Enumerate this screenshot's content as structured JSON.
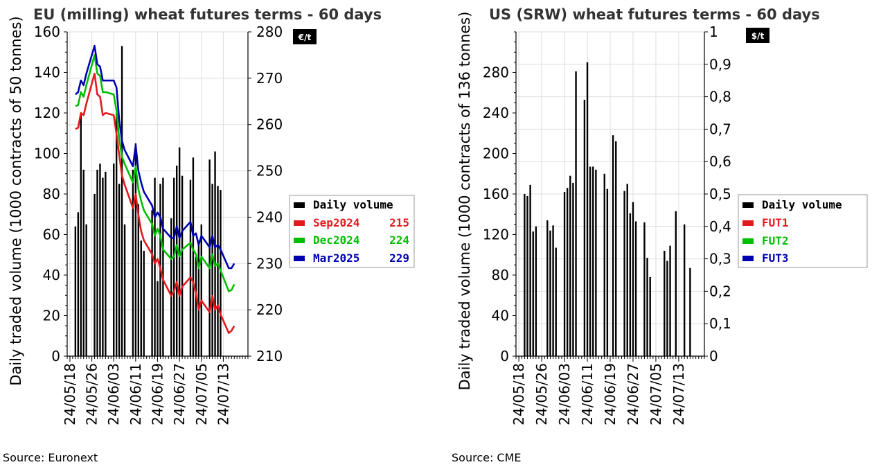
{
  "chart_data": [
    {
      "type": "bar+line",
      "title": "EU (milling) wheat futures terms - 60 days",
      "ylabel": "Daily traded volume (1000 contracts of 50 tonnes)",
      "ylim": [
        0,
        160
      ],
      "yticks": [
        "0",
        "20",
        "40",
        "60",
        "80",
        "100",
        "120",
        "140",
        "160"
      ],
      "y2unit": "€/t",
      "y2lim": [
        210,
        280
      ],
      "y2ticks": [
        "210",
        "220",
        "230",
        "240",
        "250",
        "260",
        "270",
        "280"
      ],
      "xticks": [
        "24/05/18",
        "24/05/26",
        "24/06/03",
        "24/06/11",
        "24/06/19",
        "24/06/27",
        "24/07/05",
        "24/07/13"
      ],
      "xrange": [
        "2024-05-17",
        "2024-07-22"
      ],
      "volume_dates": [
        "2024-05-20",
        "2024-05-21",
        "2024-05-22",
        "2024-05-23",
        "2024-05-24",
        "2024-05-27",
        "2024-05-28",
        "2024-05-29",
        "2024-05-30",
        "2024-05-31",
        "2024-06-03",
        "2024-06-04",
        "2024-06-05",
        "2024-06-06",
        "2024-06-07",
        "2024-06-10",
        "2024-06-11",
        "2024-06-12",
        "2024-06-13",
        "2024-06-14",
        "2024-06-17",
        "2024-06-18",
        "2024-06-19",
        "2024-06-20",
        "2024-06-21",
        "2024-06-24",
        "2024-06-25",
        "2024-06-26",
        "2024-06-27",
        "2024-06-28",
        "2024-07-01",
        "2024-07-02",
        "2024-07-03",
        "2024-07-04",
        "2024-07-05",
        "2024-07-08",
        "2024-07-09",
        "2024-07-10",
        "2024-07-11",
        "2024-07-12"
      ],
      "volume_values": [
        64,
        71,
        119,
        92,
        65,
        80,
        92,
        95,
        88,
        91,
        95,
        120,
        85,
        153,
        65,
        92,
        105,
        75,
        57,
        52,
        72,
        88,
        37,
        85,
        88,
        68,
        88,
        94,
        103,
        89,
        87,
        98,
        49,
        57,
        65,
        97,
        85,
        101,
        84,
        82
      ],
      "legend_header": "Daily volume",
      "series": [
        {
          "name": "Sep2024",
          "last": "215",
          "color": "#e31a1c",
          "dates": [
            "2024-05-20",
            "2024-05-21",
            "2024-05-22",
            "2024-05-23",
            "2024-05-24",
            "2024-05-27",
            "2024-05-28",
            "2024-05-29",
            "2024-05-30",
            "2024-05-31",
            "2024-06-03",
            "2024-06-04",
            "2024-06-05",
            "2024-06-06",
            "2024-06-07",
            "2024-06-10",
            "2024-06-11",
            "2024-06-12",
            "2024-06-13",
            "2024-06-14",
            "2024-06-17",
            "2024-06-18",
            "2024-06-19",
            "2024-06-20",
            "2024-06-21",
            "2024-06-24",
            "2024-06-25",
            "2024-06-26",
            "2024-06-27",
            "2024-06-28",
            "2024-07-01",
            "2024-07-02",
            "2024-07-03",
            "2024-07-04",
            "2024-07-05",
            "2024-07-08",
            "2024-07-09",
            "2024-07-10",
            "2024-07-11",
            "2024-07-12",
            "2024-07-15",
            "2024-07-16",
            "2024-07-17"
          ],
          "values": [
            259.0,
            259.3,
            262.5,
            262.0,
            264.5,
            271.0,
            266.5,
            266.0,
            262.0,
            262.5,
            262.0,
            258.0,
            253.5,
            249.0,
            247.0,
            242.0,
            245.0,
            240.5,
            237.0,
            235.0,
            232.0,
            230.0,
            231.0,
            229.0,
            226.5,
            223.0,
            224.0,
            226.0,
            223.0,
            225.0,
            227.0,
            226.0,
            223.5,
            220.0,
            222.0,
            219.5,
            223.0,
            220.0,
            221.0,
            219.0,
            215.0,
            215.5,
            216.5
          ]
        },
        {
          "name": "Dec2024",
          "last": "224",
          "color": "#00bf00",
          "dates": [
            "2024-05-20",
            "2024-05-21",
            "2024-05-22",
            "2024-05-23",
            "2024-05-24",
            "2024-05-27",
            "2024-05-28",
            "2024-05-29",
            "2024-05-30",
            "2024-05-31",
            "2024-06-03",
            "2024-06-04",
            "2024-06-05",
            "2024-06-06",
            "2024-06-07",
            "2024-06-10",
            "2024-06-11",
            "2024-06-12",
            "2024-06-13",
            "2024-06-14",
            "2024-06-17",
            "2024-06-18",
            "2024-06-19",
            "2024-06-20",
            "2024-06-21",
            "2024-06-24",
            "2024-06-25",
            "2024-06-26",
            "2024-06-27",
            "2024-06-28",
            "2024-07-01",
            "2024-07-02",
            "2024-07-03",
            "2024-07-04",
            "2024-07-05",
            "2024-07-08",
            "2024-07-09",
            "2024-07-10",
            "2024-07-11",
            "2024-07-12",
            "2024-07-15",
            "2024-07-16",
            "2024-07-17"
          ],
          "values": [
            264.0,
            264.2,
            267.0,
            266.0,
            268.5,
            275.0,
            271.0,
            270.5,
            267.0,
            267.0,
            266.5,
            263.0,
            257.0,
            253.0,
            251.5,
            247.5,
            251.0,
            246.0,
            243.5,
            241.5,
            238.5,
            236.0,
            237.5,
            236.0,
            233.0,
            231.0,
            231.5,
            234.0,
            231.5,
            233.0,
            234.5,
            233.0,
            232.0,
            229.0,
            231.5,
            229.0,
            232.0,
            229.5,
            230.0,
            228.5,
            224.0,
            224.3,
            225.5
          ]
        },
        {
          "name": "Mar2025",
          "last": "229",
          "color": "#0000b3",
          "dates": [
            "2024-05-20",
            "2024-05-21",
            "2024-05-22",
            "2024-05-23",
            "2024-05-24",
            "2024-05-27",
            "2024-05-28",
            "2024-05-29",
            "2024-05-30",
            "2024-05-31",
            "2024-06-03",
            "2024-06-04",
            "2024-06-05",
            "2024-06-06",
            "2024-06-07",
            "2024-06-10",
            "2024-06-11",
            "2024-06-12",
            "2024-06-13",
            "2024-06-14",
            "2024-06-17",
            "2024-06-18",
            "2024-06-19",
            "2024-06-20",
            "2024-06-21",
            "2024-06-24",
            "2024-06-25",
            "2024-06-26",
            "2024-06-27",
            "2024-06-28",
            "2024-07-01",
            "2024-07-02",
            "2024-07-03",
            "2024-07-04",
            "2024-07-05",
            "2024-07-08",
            "2024-07-09",
            "2024-07-10",
            "2024-07-11",
            "2024-07-12",
            "2024-07-15",
            "2024-07-16",
            "2024-07-17"
          ],
          "values": [
            266.5,
            267.0,
            269.5,
            268.5,
            271.0,
            277.0,
            273.0,
            272.5,
            269.5,
            269.5,
            269.5,
            268.0,
            261.0,
            256.5,
            254.5,
            251.0,
            255.5,
            250.0,
            247.5,
            245.5,
            242.5,
            240.0,
            241.0,
            240.0,
            237.5,
            235.5,
            235.5,
            238.0,
            235.5,
            237.0,
            239.0,
            236.0,
            236.5,
            234.0,
            236.0,
            233.5,
            236.0,
            233.5,
            234.0,
            233.0,
            229.0,
            229.0,
            230.0
          ]
        }
      ]
    },
    {
      "type": "bar+line",
      "title": "US (SRW) wheat futures terms - 60 days",
      "ylabel": "Daily traded volume (1000 contracts of 136 tonnes)",
      "ylim": [
        0,
        320
      ],
      "yticks": [
        "0",
        "40",
        "80",
        "120",
        "160",
        "200",
        "240",
        "280"
      ],
      "y2unit": "$/t",
      "y2lim": [
        0,
        1
      ],
      "y2ticks": [
        "0",
        "0,1",
        "0,2",
        "0,3",
        "0,4",
        "0,5",
        "0,6",
        "0,7",
        "0,8",
        "0,9",
        "1"
      ],
      "xticks": [
        "24/05/18",
        "24/05/26",
        "24/06/03",
        "24/06/11",
        "24/06/19",
        "24/06/27",
        "24/07/05",
        "24/07/13"
      ],
      "xrange": [
        "2024-05-17",
        "2024-07-22"
      ],
      "volume_dates": [
        "2024-05-20",
        "2024-05-21",
        "2024-05-22",
        "2024-05-23",
        "2024-05-24",
        "2024-05-28",
        "2024-05-29",
        "2024-05-30",
        "2024-05-31",
        "2024-06-03",
        "2024-06-04",
        "2024-06-05",
        "2024-06-06",
        "2024-06-07",
        "2024-06-10",
        "2024-06-11",
        "2024-06-12",
        "2024-06-13",
        "2024-06-14",
        "2024-06-17",
        "2024-06-18",
        "2024-06-20",
        "2024-06-21",
        "2024-06-24",
        "2024-06-25",
        "2024-06-26",
        "2024-06-27",
        "2024-06-28",
        "2024-07-01",
        "2024-07-02",
        "2024-07-03",
        "2024-07-08",
        "2024-07-09",
        "2024-07-10",
        "2024-07-12",
        "2024-07-15",
        "2024-07-17"
      ],
      "volume_values": [
        160,
        158,
        169,
        123,
        128,
        134,
        124,
        129,
        107,
        162,
        166,
        178,
        171,
        281,
        253,
        290,
        187,
        187,
        184,
        180,
        165,
        218,
        212,
        163,
        170,
        141,
        152,
        133,
        132,
        97,
        78,
        104,
        94,
        109,
        143,
        130,
        87
      ],
      "legend_header": "Daily volume",
      "series": [
        {
          "name": "FUT1",
          "last": "",
          "color": "#e31a1c",
          "dates": [],
          "values": []
        },
        {
          "name": "FUT2",
          "last": "",
          "color": "#00bf00",
          "dates": [],
          "values": []
        },
        {
          "name": "FUT3",
          "last": "",
          "color": "#0000b3",
          "dates": [],
          "values": []
        }
      ]
    }
  ],
  "sources": [
    "Source: Euronext",
    "Source: CME"
  ]
}
